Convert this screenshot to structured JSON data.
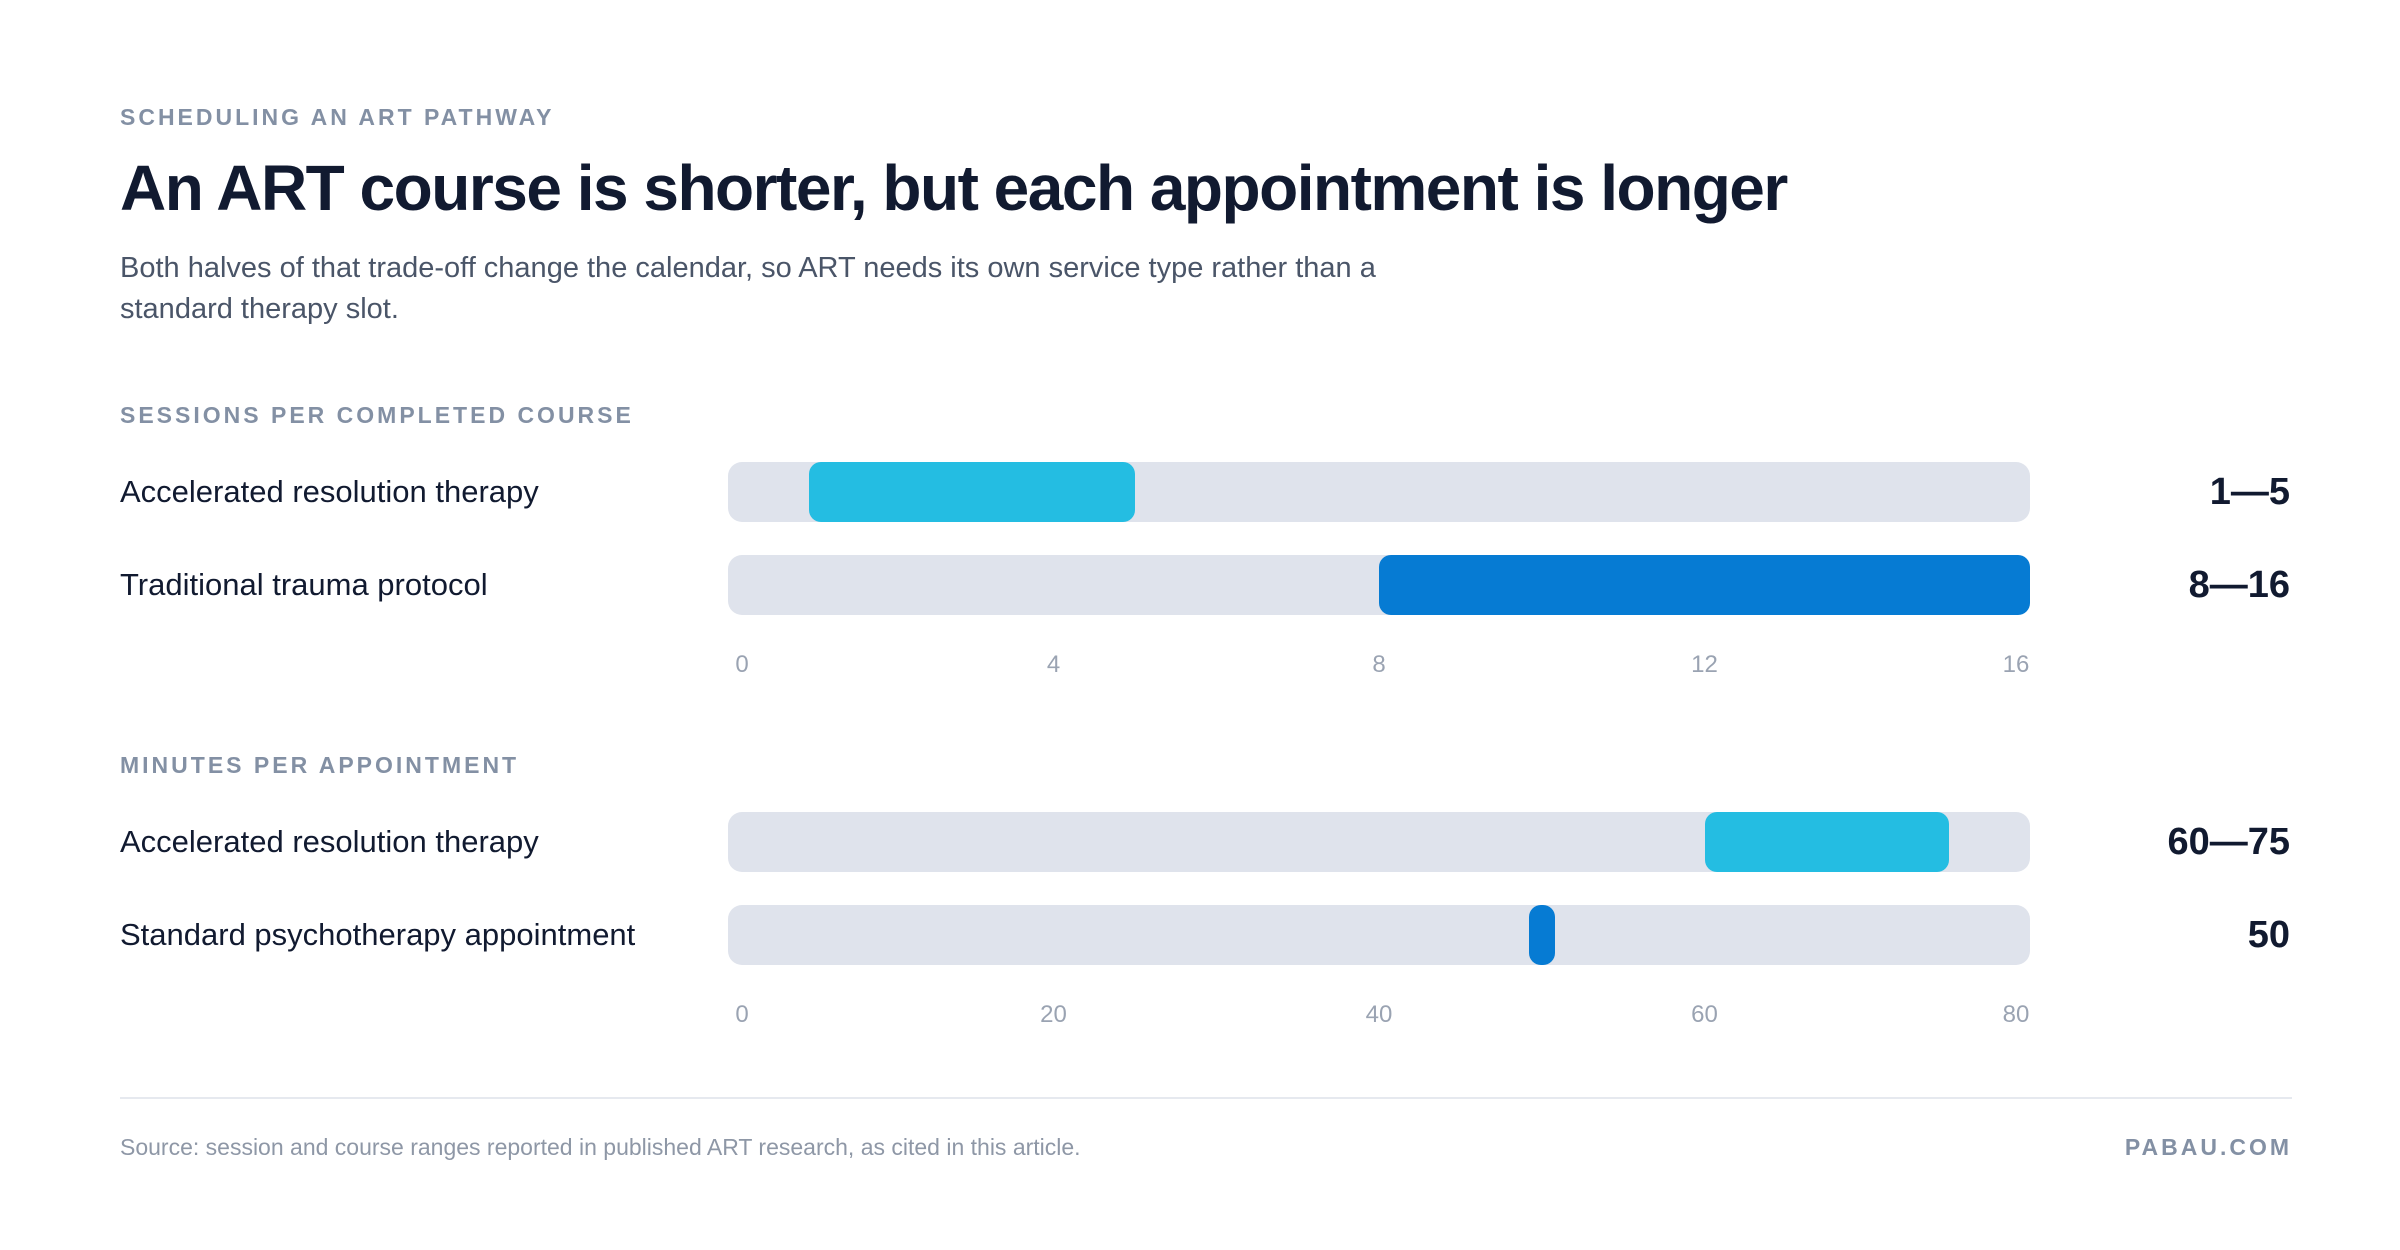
{
  "header": {
    "eyebrow": "SCHEDULING AN ART PATHWAY",
    "title": "An ART course is shorter, but each appointment is longer",
    "subtitle": "Both halves of that trade-off change the calendar, so ART needs its own service type rather than a standard therapy slot."
  },
  "colors": {
    "accent_light": "#24bde2",
    "accent_dark": "#067bd3",
    "track": "#dfe3ec"
  },
  "chart_data": [
    {
      "type": "bar",
      "title": "SESSIONS PER COMPLETED COURSE",
      "xlim": [
        0,
        16
      ],
      "ticks": [
        "0",
        "4",
        "8",
        "12",
        "16"
      ],
      "rows": [
        {
          "label": "Accelerated resolution therapy",
          "start": 1,
          "end": 5,
          "value_label": "1—5",
          "color": "#24bde2"
        },
        {
          "label": "Traditional trauma protocol",
          "start": 8,
          "end": 16,
          "value_label": "8—16",
          "color": "#067bd3"
        }
      ]
    },
    {
      "type": "bar",
      "title": "MINUTES PER APPOINTMENT",
      "xlim": [
        0,
        80
      ],
      "ticks": [
        "0",
        "20",
        "40",
        "60",
        "80"
      ],
      "rows": [
        {
          "label": "Accelerated resolution therapy",
          "start": 60,
          "end": 75,
          "value_label": "60—75",
          "color": "#24bde2"
        },
        {
          "label": "Standard psychotherapy appointment",
          "start": 50,
          "end": 50,
          "value_label": "50",
          "color": "#067bd3"
        }
      ]
    }
  ],
  "footer": {
    "source": "Source: session and course ranges reported in published ART research, as cited in this article.",
    "brand": "PABAU.COM"
  }
}
